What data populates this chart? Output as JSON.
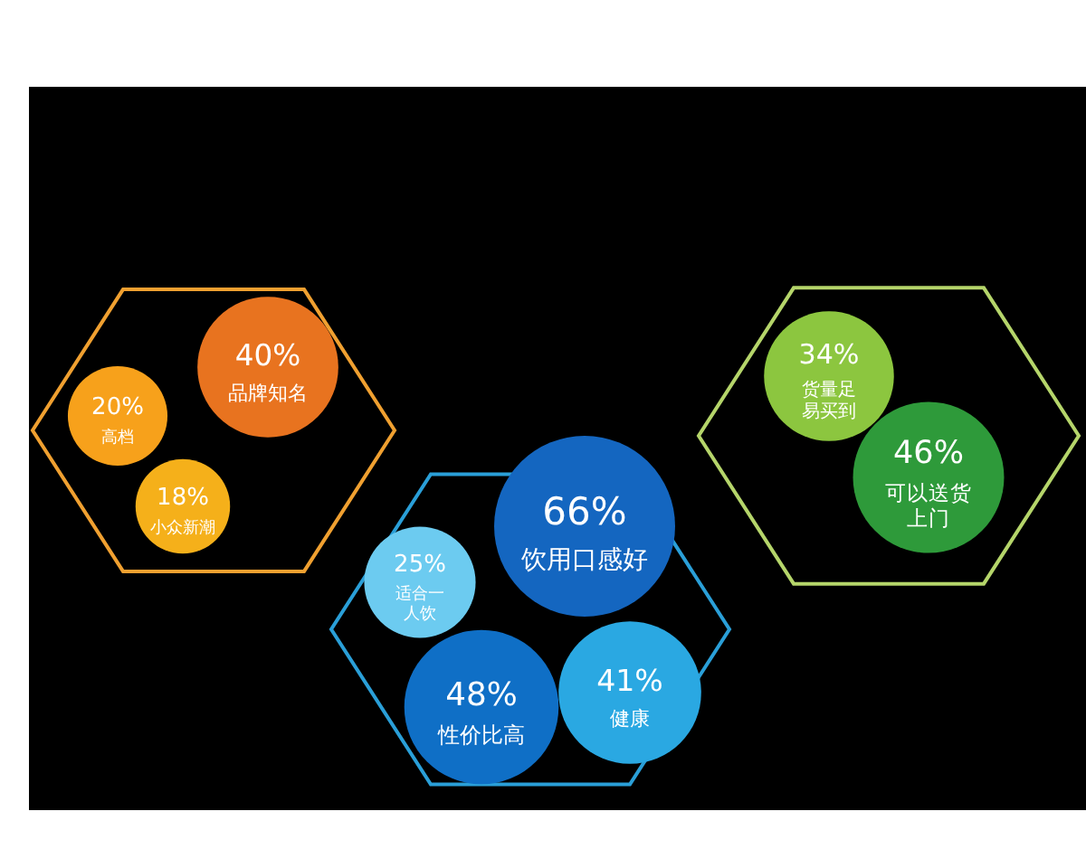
{
  "chart_data": {
    "type": "other",
    "categories": [
      "品牌知名",
      "高档",
      "小众新潮",
      "饮用口感好",
      "适合一人饮",
      "性价比高",
      "健康",
      "货量足易买到",
      "可以送货上门"
    ],
    "values": [
      40,
      20,
      18,
      66,
      25,
      48,
      41,
      34,
      46
    ],
    "value_labels": [
      "40%",
      "20%",
      "18%",
      "66%",
      "25%",
      "48%",
      "41%",
      "34%",
      "46%"
    ],
    "colors": [
      "#e8731f",
      "#f7a11b",
      "#f5b01a",
      "#1466c0",
      "#6ccbf0",
      "#0f6fc6",
      "#2aa8e2",
      "#8cc63f",
      "#2e9a3a"
    ]
  }
}
